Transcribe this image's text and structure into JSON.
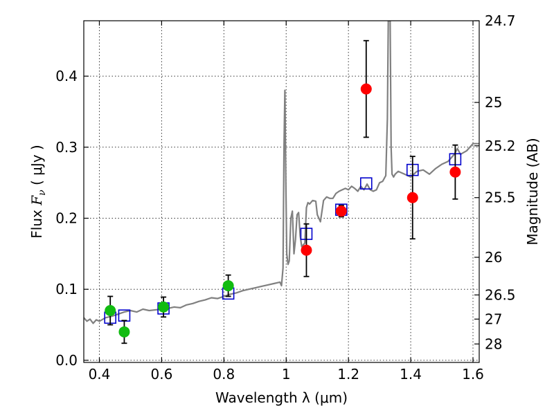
{
  "chart_data": {
    "type": "scatter",
    "title": "",
    "xlabel": "Wavelength  λ (μm)",
    "ylabel": "Flux  F_ν  ( μJy )",
    "ylabel_right": "Magnitude (AB)",
    "xlim": [
      0.35,
      1.62
    ],
    "ylim": [
      -0.003,
      0.478
    ],
    "x_ticks": [
      0.4,
      0.6,
      0.8,
      1.0,
      1.2,
      1.4,
      1.6
    ],
    "x_tick_labels": [
      "0.4",
      "0.6",
      "0.8",
      "1",
      "1.2",
      "1.4",
      "1.6"
    ],
    "y_ticks": [
      0.0,
      0.1,
      0.2,
      0.3,
      0.4
    ],
    "y_tick_labels": [
      "0.0",
      "0.1",
      "0.2",
      "0.3",
      "0.4"
    ],
    "right_ticks": [
      {
        "flux": 0.478,
        "label": "24.7"
      },
      {
        "flux": 0.363,
        "label": "25"
      },
      {
        "flux": 0.302,
        "label": "25.2"
      },
      {
        "flux": 0.229,
        "label": "25.5"
      },
      {
        "flux": 0.145,
        "label": "26"
      },
      {
        "flux": 0.092,
        "label": "26.5"
      },
      {
        "flux": 0.058,
        "label": "27"
      },
      {
        "flux": 0.023,
        "label": "28"
      }
    ],
    "grid": true,
    "colors": {
      "green": "#11bb11",
      "red": "#ff0000",
      "blue": "#0000cc",
      "model": "#808080"
    },
    "series": [
      {
        "marker": "circle",
        "color": "#11bb11",
        "points": [
          {
            "x": 0.435,
            "y": 0.07,
            "err": 0.02
          },
          {
            "x": 0.48,
            "y": 0.04,
            "err": 0.016
          },
          {
            "x": 0.606,
            "y": 0.075,
            "err": 0.014
          },
          {
            "x": 0.814,
            "y": 0.105,
            "err": 0.015
          }
        ]
      },
      {
        "marker": "circle",
        "color": "#ff0000",
        "points": [
          {
            "x": 1.065,
            "y": 0.155,
            "err": 0.037
          },
          {
            "x": 1.177,
            "y": 0.21,
            "err": 0.008
          },
          {
            "x": 1.257,
            "y": 0.382,
            "err": 0.068
          },
          {
            "x": 1.406,
            "y": 0.229,
            "err": 0.058
          },
          {
            "x": 1.543,
            "y": 0.265,
            "err": 0.038
          }
        ]
      },
      {
        "marker": "open-square",
        "color": "#0000cc",
        "points": [
          {
            "x": 0.435,
            "y": 0.06
          },
          {
            "x": 0.48,
            "y": 0.063
          },
          {
            "x": 0.606,
            "y": 0.073
          },
          {
            "x": 0.814,
            "y": 0.094
          },
          {
            "x": 1.065,
            "y": 0.178
          },
          {
            "x": 1.177,
            "y": 0.212
          },
          {
            "x": 1.257,
            "y": 0.249
          },
          {
            "x": 1.406,
            "y": 0.268
          },
          {
            "x": 1.543,
            "y": 0.283
          }
        ]
      },
      {
        "type": "line",
        "color": "#808080",
        "x": [
          0.35,
          0.36,
          0.37,
          0.38,
          0.39,
          0.4,
          0.42,
          0.44,
          0.46,
          0.48,
          0.5,
          0.52,
          0.54,
          0.56,
          0.58,
          0.6,
          0.62,
          0.64,
          0.66,
          0.68,
          0.7,
          0.72,
          0.74,
          0.76,
          0.78,
          0.8,
          0.82,
          0.84,
          0.86,
          0.88,
          0.9,
          0.92,
          0.94,
          0.96,
          0.98,
          0.985,
          0.99,
          0.993,
          0.996,
          0.999,
          1.002,
          1.006,
          1.01,
          1.015,
          1.02,
          1.025,
          1.03,
          1.035,
          1.04,
          1.045,
          1.05,
          1.06,
          1.065,
          1.07,
          1.075,
          1.085,
          1.095,
          1.1,
          1.11,
          1.12,
          1.13,
          1.14,
          1.15,
          1.16,
          1.17,
          1.18,
          1.19,
          1.2,
          1.21,
          1.22,
          1.23,
          1.24,
          1.25,
          1.26,
          1.27,
          1.28,
          1.29,
          1.3,
          1.31,
          1.32,
          1.325,
          1.328,
          1.331,
          1.334,
          1.337,
          1.34,
          1.345,
          1.35,
          1.36,
          1.38,
          1.4,
          1.42,
          1.44,
          1.46,
          1.48,
          1.5,
          1.52,
          1.54,
          1.55,
          1.56,
          1.58,
          1.6,
          1.62
        ],
        "y": [
          0.06,
          0.055,
          0.058,
          0.052,
          0.057,
          0.055,
          0.06,
          0.062,
          0.065,
          0.068,
          0.07,
          0.068,
          0.072,
          0.07,
          0.071,
          0.072,
          0.073,
          0.075,
          0.074,
          0.078,
          0.08,
          0.083,
          0.085,
          0.088,
          0.087,
          0.09,
          0.093,
          0.095,
          0.098,
          0.1,
          0.102,
          0.104,
          0.106,
          0.108,
          0.11,
          0.105,
          0.13,
          0.3,
          0.38,
          0.25,
          0.15,
          0.135,
          0.14,
          0.2,
          0.21,
          0.15,
          0.17,
          0.205,
          0.208,
          0.175,
          0.16,
          0.165,
          0.215,
          0.222,
          0.22,
          0.225,
          0.224,
          0.205,
          0.195,
          0.225,
          0.23,
          0.228,
          0.228,
          0.235,
          0.238,
          0.24,
          0.242,
          0.24,
          0.245,
          0.242,
          0.238,
          0.245,
          0.24,
          0.248,
          0.24,
          0.238,
          0.24,
          0.25,
          0.252,
          0.26,
          0.34,
          0.478,
          0.478,
          0.478,
          0.3,
          0.262,
          0.258,
          0.262,
          0.266,
          0.262,
          0.258,
          0.266,
          0.268,
          0.262,
          0.27,
          0.276,
          0.28,
          0.29,
          0.298,
          0.29,
          0.295,
          0.305,
          0.305
        ]
      }
    ]
  }
}
